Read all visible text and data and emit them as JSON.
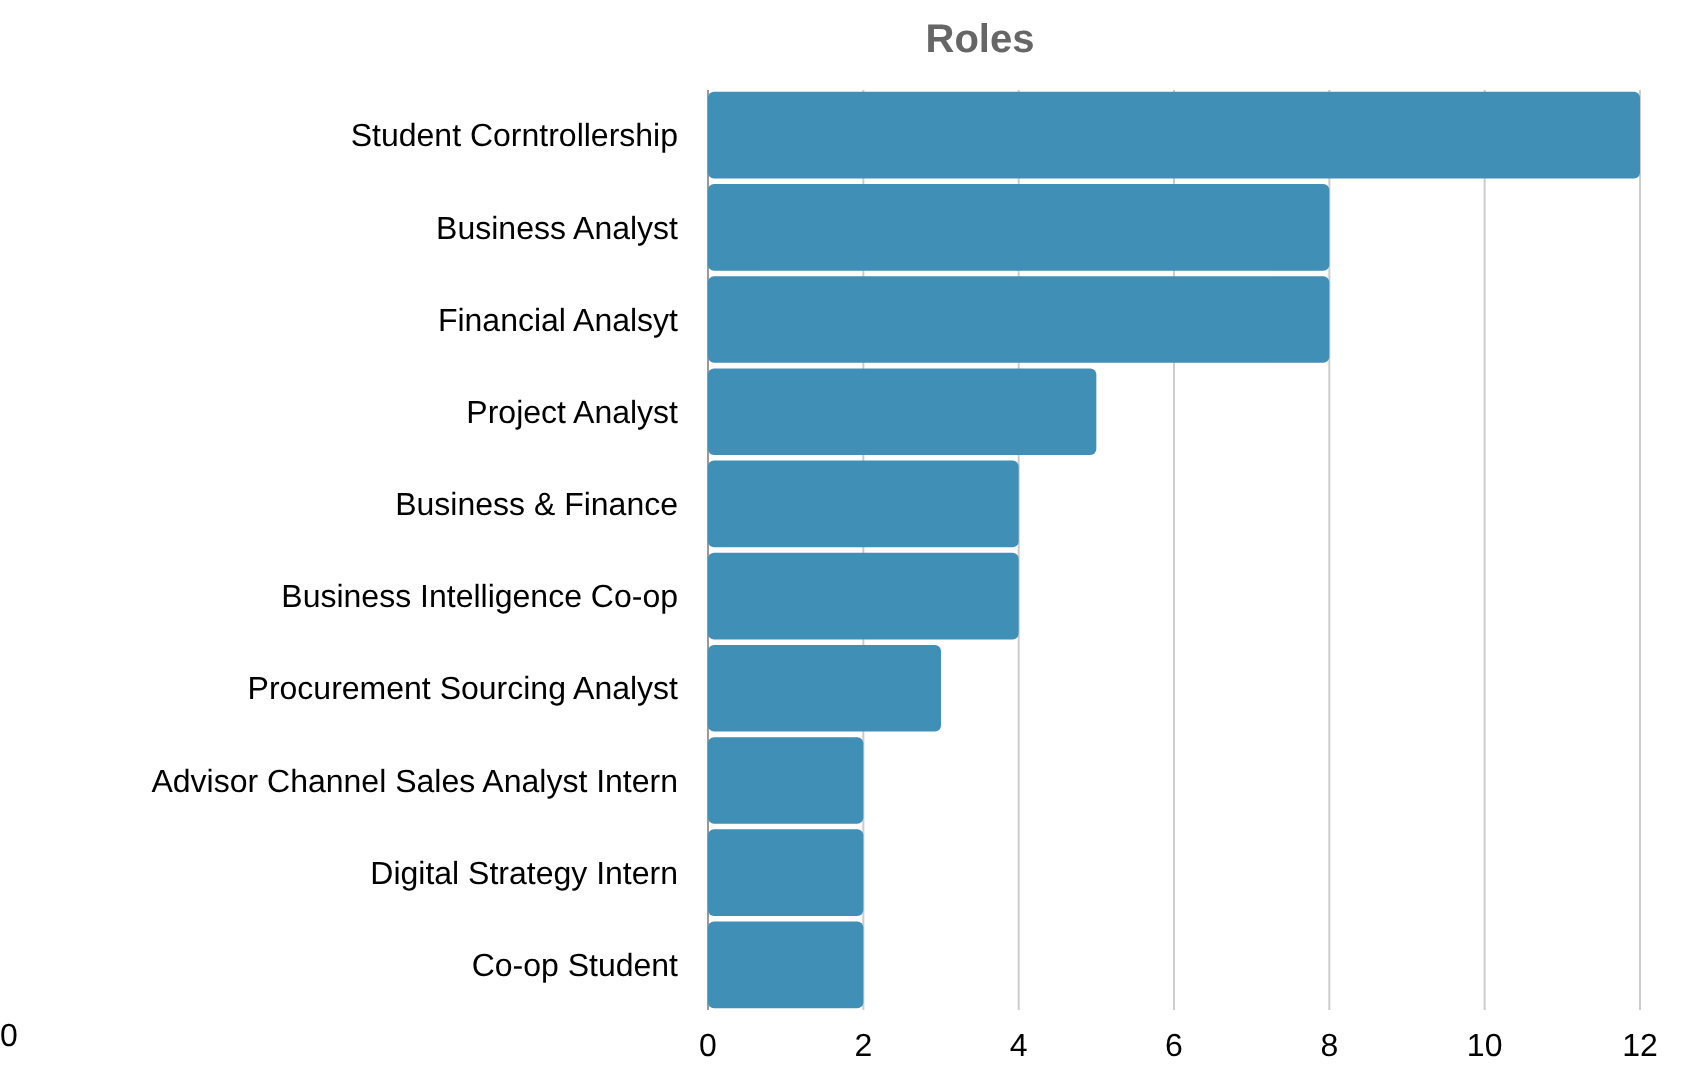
{
  "chart_data": {
    "type": "bar",
    "orientation": "horizontal",
    "title": "Roles",
    "categories": [
      "Student Corntrollership",
      "Business Analyst",
      "Financial Analsyt",
      "Project Analyst",
      "Business & Finance",
      "Business Intelligence Co-op",
      "Procurement Sourcing Analyst",
      "Advisor Channel Sales Analyst Intern",
      "Digital Strategy Intern",
      "Co-op Student"
    ],
    "values": [
      12,
      8,
      8,
      5,
      4,
      4,
      3,
      2,
      2,
      2
    ],
    "color": "#3f8fb6",
    "xlim": [
      0,
      12
    ],
    "xticks": [
      0,
      2,
      4,
      6,
      8,
      10,
      12
    ],
    "grid": "x",
    "annotations": [
      "0"
    ]
  }
}
